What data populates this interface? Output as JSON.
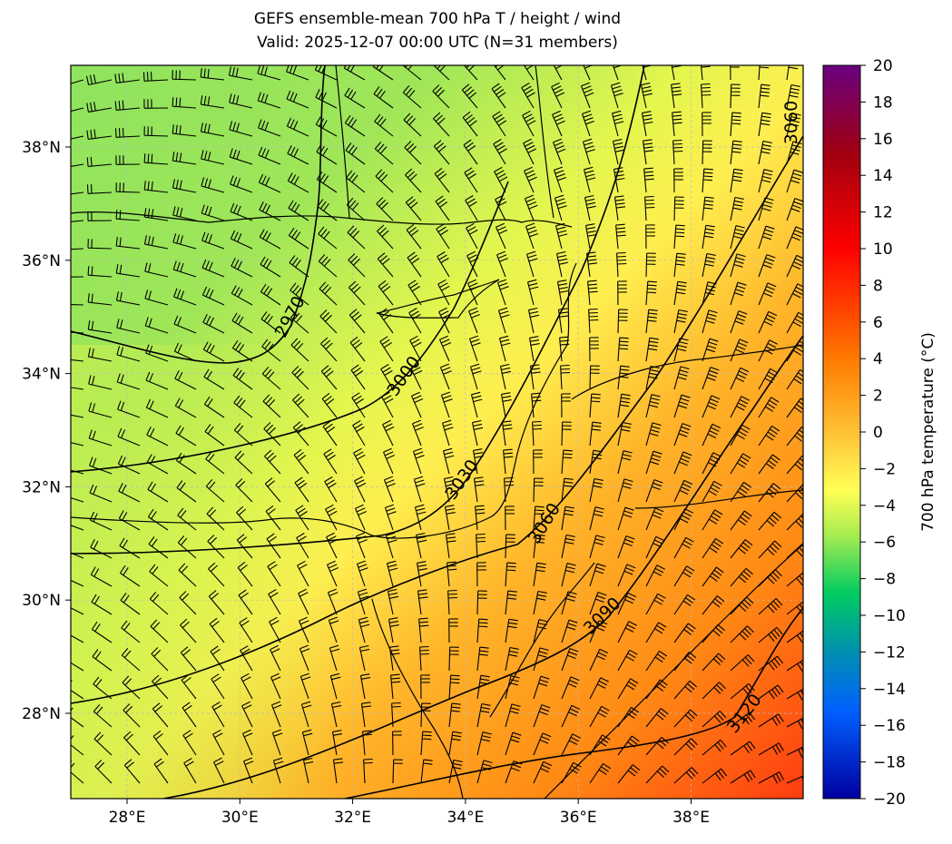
{
  "title": [
    "GEFS ensemble-mean 700 hPa T / height / wind",
    "Valid: 2025-12-07 00:00 UTC (N=31 members)"
  ],
  "map": {
    "lon_ticks": [
      "28°E",
      "30°E",
      "32°E",
      "34°E",
      "36°E",
      "38°E"
    ],
    "lat_ticks": [
      "38°N",
      "36°N",
      "34°N",
      "32°N",
      "30°N",
      "28°N"
    ],
    "contour_labels": [
      "2970",
      "3000",
      "3030",
      "3060",
      "3090",
      "3120",
      "3060"
    ]
  },
  "colorbar": {
    "label": "700 hPa temperature (°C)",
    "ticks": [
      "20",
      "18",
      "16",
      "14",
      "12",
      "10",
      "8",
      "6",
      "4",
      "2",
      "0",
      "−2",
      "−4",
      "−6",
      "−8",
      "−10",
      "−12",
      "−14",
      "−16",
      "−18",
      "−20"
    ]
  }
}
